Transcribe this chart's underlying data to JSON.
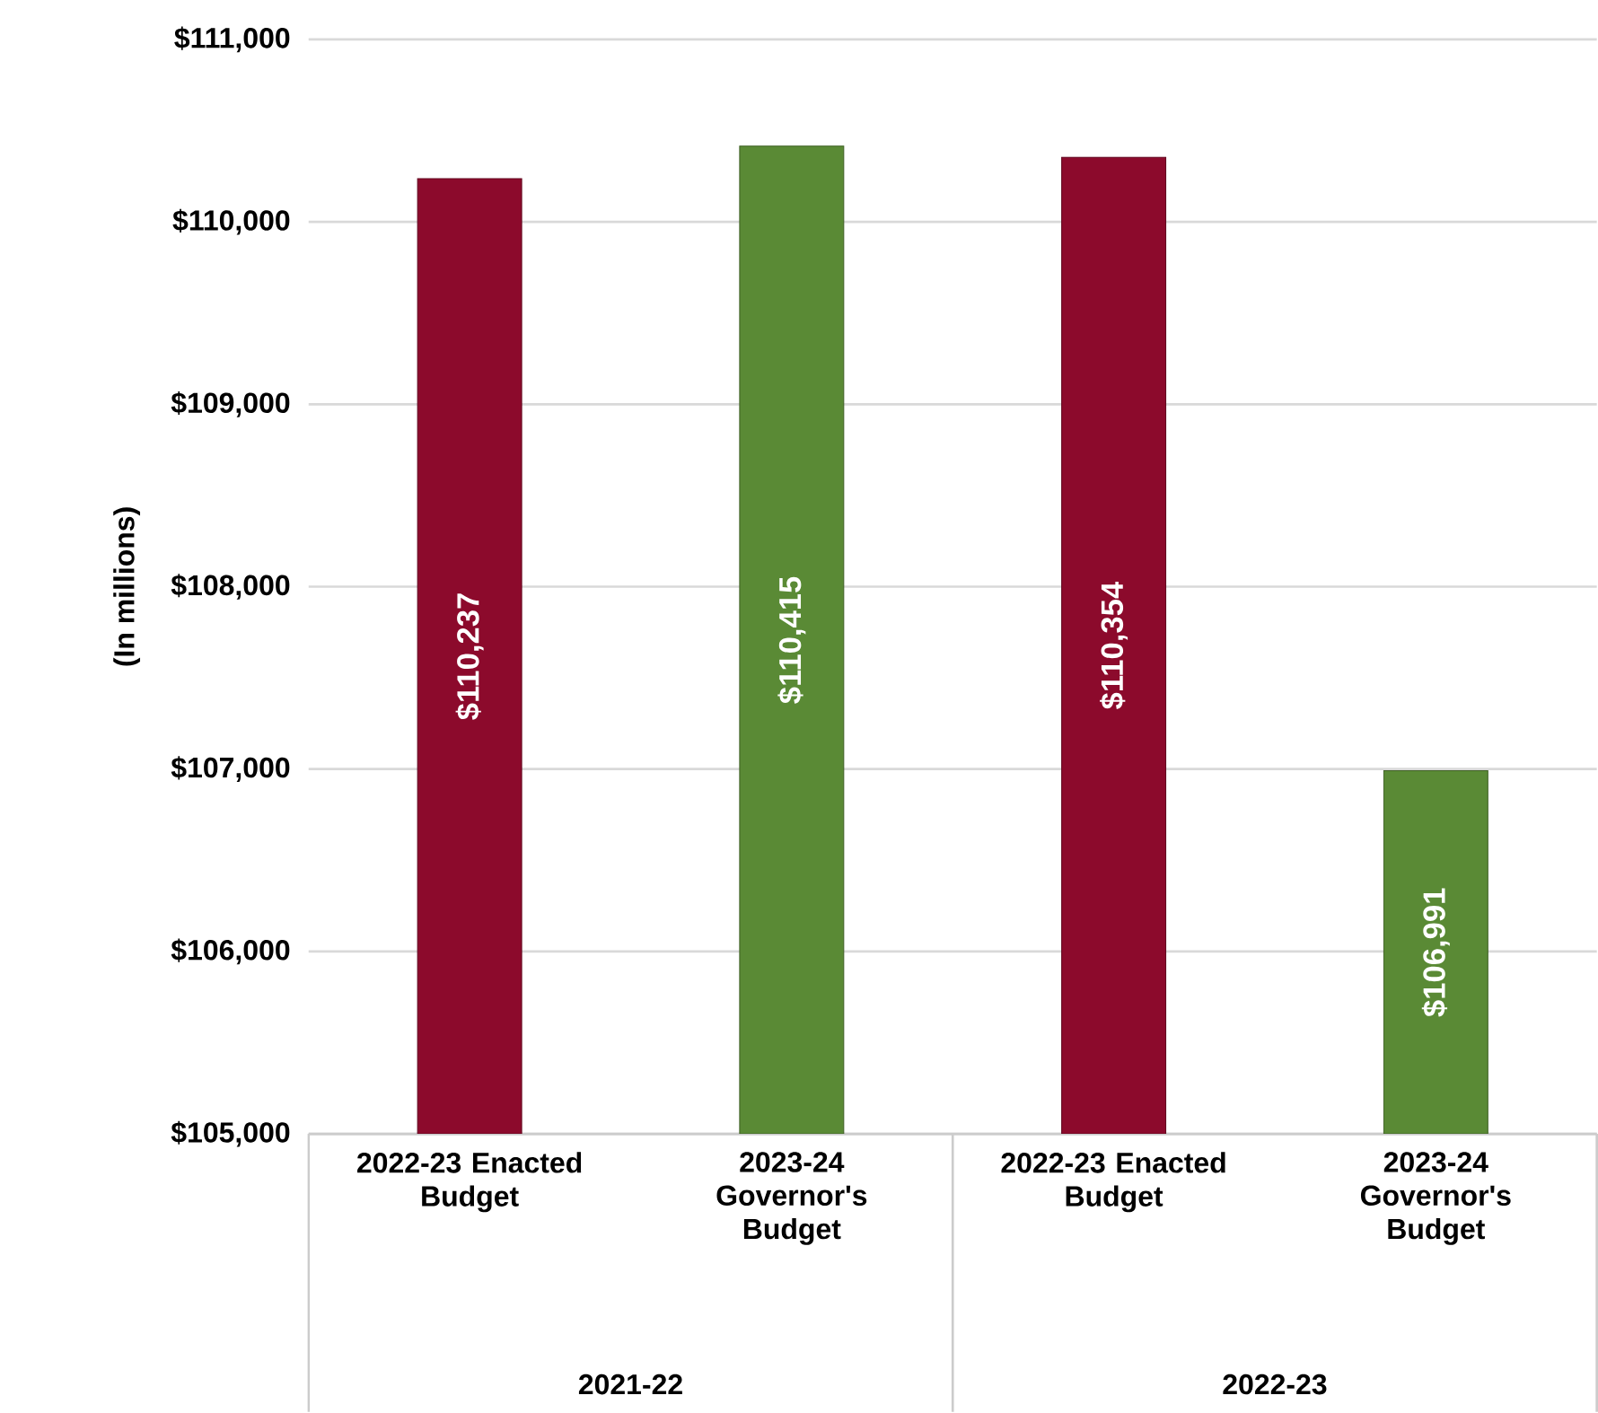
{
  "chart_data": {
    "type": "bar",
    "ylabel": "(In millions)",
    "categories": [
      "2022-23 Enacted Budget",
      "2023-24 Governor's Budget",
      "2022-23 Enacted Budget",
      "2023-24 Governor's Budget"
    ],
    "values": [
      110237,
      110415,
      110354,
      106991
    ],
    "colors": [
      "#8c0a2c",
      "#5a8a35",
      "#8c0a2c",
      "#5a8a35"
    ],
    "value_labels": [
      "$110,237",
      "$110,415",
      "$110,354",
      "$106,991"
    ],
    "ylim": [
      105000,
      111000
    ],
    "yticks": [
      {
        "value": 105000,
        "label": "$105,000"
      },
      {
        "value": 106000,
        "label": "$106,000"
      },
      {
        "value": 107000,
        "label": "$107,000"
      },
      {
        "value": 108000,
        "label": "$108,000"
      },
      {
        "value": 109000,
        "label": "$109,000"
      },
      {
        "value": 110000,
        "label": "$110,000"
      },
      {
        "value": 111000,
        "label": "$111,000"
      }
    ],
    "annotations": [
      "2021-22",
      "2022-23"
    ],
    "grid": "y"
  }
}
